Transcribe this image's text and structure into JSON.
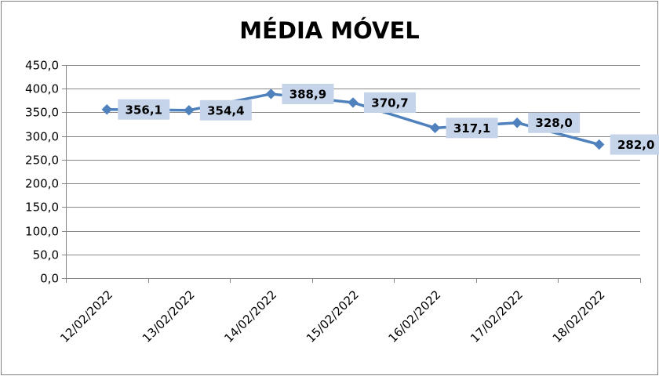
{
  "chart_data": {
    "type": "line",
    "title": "MÉDIA MÓVEL",
    "categories": [
      "12/02/2022",
      "13/02/2022",
      "14/02/2022",
      "15/02/2022",
      "16/02/2022",
      "17/02/2022",
      "18/02/2022"
    ],
    "values": [
      356.1,
      354.4,
      388.9,
      370.7,
      317.1,
      328.0,
      282.0
    ],
    "data_labels": [
      "356,1",
      "354,4",
      "388,9",
      "370,7",
      "317,1",
      "328,0",
      "282,0"
    ],
    "y_ticks": [
      "0,0",
      "50,0",
      "100,0",
      "150,0",
      "200,0",
      "250,0",
      "300,0",
      "350,0",
      "400,0",
      "450,0"
    ],
    "ylim": [
      0,
      450
    ],
    "y_step": 50,
    "grid": true,
    "legend": "none",
    "colors": {
      "line": "#4f81bd",
      "marker": "#4f81bd",
      "label_box": "#c6d4ea",
      "grid": "#868686",
      "axis": "#868686"
    }
  }
}
